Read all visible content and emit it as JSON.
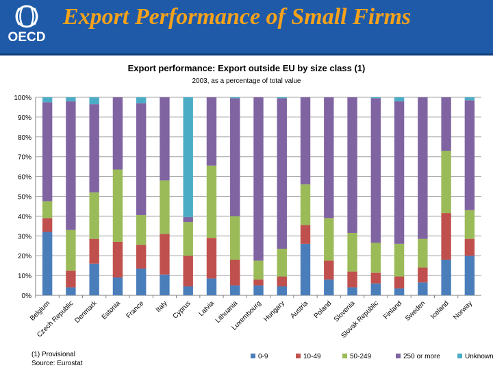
{
  "slide": {
    "title": "Export Performance of Small Firms",
    "logo_text": "OECD"
  },
  "chart_data": {
    "type": "bar",
    "stacked": true,
    "title": "Export performance: Export outside EU by size class (1)",
    "subtitle": "2003, as a percentage of total value",
    "ylim": [
      0,
      100
    ],
    "yticks": [
      "0%",
      "10%",
      "20%",
      "30%",
      "40%",
      "50%",
      "60%",
      "70%",
      "80%",
      "90%",
      "100%"
    ],
    "grid": true,
    "legend_position": "bottom",
    "categories": [
      "Belgium",
      "Czech Republic",
      "Denmark",
      "Estonia",
      "France",
      "Italy",
      "Cyprus",
      "Latvia",
      "Lithuania",
      "Luxembourg",
      "Hungary",
      "Austria",
      "Poland",
      "Slovenia",
      "Slovak Republic",
      "Finland",
      "Sweden",
      "Iceland",
      "Norway"
    ],
    "series": [
      {
        "name": "0-9",
        "color": "#4a7ebb",
        "values": [
          32,
          4,
          16,
          9,
          13.5,
          10.5,
          4.5,
          8.5,
          5,
          5,
          4.5,
          26,
          8,
          4,
          6,
          3.5,
          6.5,
          18,
          20
        ]
      },
      {
        "name": "10-49",
        "color": "#c0504d",
        "values": [
          7,
          8.5,
          12.5,
          18,
          12,
          20.5,
          15.5,
          20.5,
          13,
          3,
          5,
          9.5,
          9.5,
          8,
          5.5,
          6,
          7.5,
          23.5,
          8.5
        ]
      },
      {
        "name": "50-249",
        "color": "#9bbb59",
        "values": [
          8.5,
          20.5,
          23.5,
          36.5,
          15,
          27,
          17,
          36.5,
          22,
          9.5,
          14,
          20.5,
          21.5,
          19.5,
          15,
          16.5,
          14.5,
          31.5,
          14.5
        ]
      },
      {
        "name": "250 or more",
        "color": "#8064a2",
        "values": [
          50,
          65,
          44.5,
          36.5,
          56.5,
          42,
          2.5,
          34.5,
          59.5,
          82.5,
          76,
          44,
          61,
          68.5,
          73,
          72,
          71.5,
          27,
          55.5
        ]
      },
      {
        "name": "Unknown",
        "color": "#4bacc6",
        "values": [
          2.5,
          2,
          3.5,
          0,
          3,
          0,
          60.5,
          0,
          0.5,
          0,
          0.5,
          0,
          0,
          0,
          0.5,
          2,
          0,
          0,
          1.5
        ]
      }
    ]
  },
  "footnotes": {
    "note1": "(1) Provisional",
    "source": "Source: Eurostat"
  }
}
